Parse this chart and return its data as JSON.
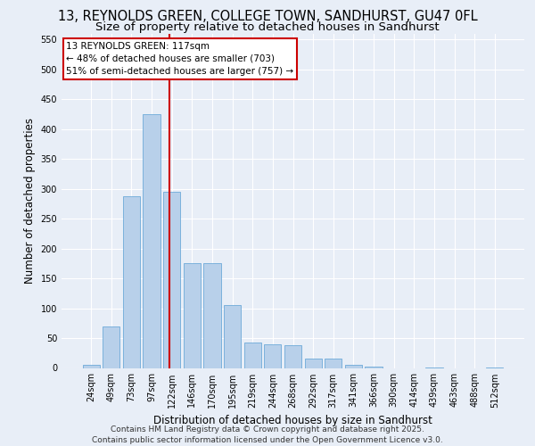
{
  "title_line1": "13, REYNOLDS GREEN, COLLEGE TOWN, SANDHURST, GU47 0FL",
  "title_line2": "Size of property relative to detached houses in Sandhurst",
  "xlabel": "Distribution of detached houses by size in Sandhurst",
  "ylabel": "Number of detached properties",
  "bar_color": "#b8d0ea",
  "bar_edge_color": "#5a9fd4",
  "categories": [
    "24sqm",
    "49sqm",
    "73sqm",
    "97sqm",
    "122sqm",
    "146sqm",
    "170sqm",
    "195sqm",
    "219sqm",
    "244sqm",
    "268sqm",
    "292sqm",
    "317sqm",
    "341sqm",
    "366sqm",
    "390sqm",
    "414sqm",
    "439sqm",
    "463sqm",
    "488sqm",
    "512sqm"
  ],
  "values": [
    5,
    70,
    288,
    425,
    295,
    175,
    175,
    105,
    43,
    40,
    38,
    15,
    15,
    5,
    2,
    0,
    0,
    1,
    0,
    0,
    1
  ],
  "ylim": [
    0,
    560
  ],
  "yticks": [
    0,
    50,
    100,
    150,
    200,
    250,
    300,
    350,
    400,
    450,
    500,
    550
  ],
  "vline_x": 3.88,
  "vline_color": "#cc0000",
  "annotation_line1": "13 REYNOLDS GREEN: 117sqm",
  "annotation_line2": "← 48% of detached houses are smaller (703)",
  "annotation_line3": "51% of semi-detached houses are larger (757) →",
  "annotation_box_color": "#ffffff",
  "annotation_box_edge": "#cc0000",
  "footer_line1": "Contains HM Land Registry data © Crown copyright and database right 2025.",
  "footer_line2": "Contains public sector information licensed under the Open Government Licence v3.0.",
  "background_color": "#e8eef7",
  "plot_bg_color": "#e8eef7",
  "grid_color": "#ffffff",
  "title_fontsize": 10.5,
  "subtitle_fontsize": 9.5,
  "axis_label_fontsize": 8.5,
  "tick_fontsize": 7,
  "annotation_fontsize": 7.5,
  "footer_fontsize": 6.5
}
